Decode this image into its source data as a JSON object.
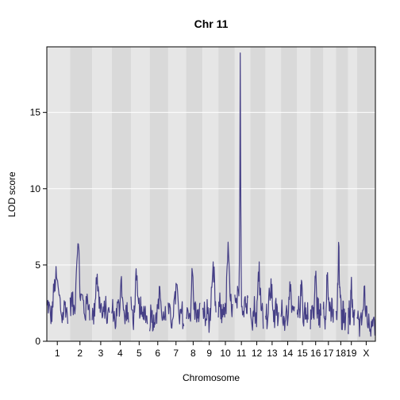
{
  "colors": {
    "band_light": "#e6e6e6",
    "band_dark": "#d9d9d9",
    "gridline": "#ffffff",
    "frame": "#000000",
    "trace": "#453f86"
  },
  "chart_data": {
    "type": "line",
    "title": "Chr 11",
    "xlabel": "Chromosome",
    "ylabel": "LOD score",
    "ylim": [
      0,
      19.3
    ],
    "yticks": [
      0,
      5,
      10,
      15
    ],
    "grid": true,
    "chromosomes": [
      {
        "name": "1",
        "label": "1",
        "length": 195,
        "peak": 4.9,
        "peak_pos": 0.45,
        "base": 2.0
      },
      {
        "name": "2",
        "label": "2",
        "length": 182,
        "peak": 6.4,
        "peak_pos": 0.4,
        "base": 2.3
      },
      {
        "name": "3",
        "label": "3",
        "length": 160,
        "peak": 4.4,
        "peak_pos": 0.3,
        "base": 1.9
      },
      {
        "name": "4",
        "label": "4",
        "length": 157,
        "peak": 4.0,
        "peak_pos": 0.55,
        "base": 1.7
      },
      {
        "name": "5",
        "label": "5",
        "length": 152,
        "peak": 4.0,
        "peak_pos": 0.35,
        "base": 1.8
      },
      {
        "name": "6",
        "label": "6",
        "length": 150,
        "peak": 3.6,
        "peak_pos": 0.6,
        "base": 1.6
      },
      {
        "name": "7",
        "label": "7",
        "length": 145,
        "peak": 3.8,
        "peak_pos": 0.5,
        "base": 1.6
      },
      {
        "name": "8",
        "label": "8",
        "length": 130,
        "peak": 4.5,
        "peak_pos": 0.45,
        "base": 1.8
      },
      {
        "name": "9",
        "label": "9",
        "length": 125,
        "peak": 5.2,
        "peak_pos": 0.8,
        "base": 1.7
      },
      {
        "name": "10",
        "label": "10",
        "length": 131,
        "peak": 6.5,
        "peak_pos": 0.7,
        "base": 2.0
      },
      {
        "name": "11",
        "label": "11",
        "length": 122,
        "peak": 18.9,
        "peak_pos": 0.42,
        "base": 2.5
      },
      {
        "name": "12",
        "label": "12",
        "length": 120,
        "peak": 5.2,
        "peak_pos": 0.7,
        "base": 1.9
      },
      {
        "name": "13",
        "label": "13",
        "length": 121,
        "peak": 4.1,
        "peak_pos": 0.4,
        "base": 1.8
      },
      {
        "name": "14",
        "label": "14",
        "length": 125,
        "peak": 3.9,
        "peak_pos": 0.65,
        "base": 1.7
      },
      {
        "name": "15",
        "label": "15",
        "length": 104,
        "peak": 4.0,
        "peak_pos": 0.4,
        "base": 1.8
      },
      {
        "name": "16",
        "label": "16",
        "length": 98,
        "peak": 4.6,
        "peak_pos": 0.5,
        "base": 1.8
      },
      {
        "name": "17",
        "label": "17",
        "length": 95,
        "peak": 4.5,
        "peak_pos": 0.4,
        "base": 1.9
      },
      {
        "name": "18",
        "label": "18",
        "length": 91,
        "peak": 6.2,
        "peak_pos": 0.3,
        "base": 1.7
      },
      {
        "name": "19",
        "label": "19",
        "length": 61,
        "peak": 4.2,
        "peak_pos": 0.5,
        "base": 1.6
      },
      {
        "name": "X",
        "label": "X",
        "length": 171,
        "peak": 3.6,
        "peak_pos": 0.4,
        "base": 1.2
      }
    ],
    "hidden_tick_labels": [
      "16",
      "18"
    ]
  }
}
